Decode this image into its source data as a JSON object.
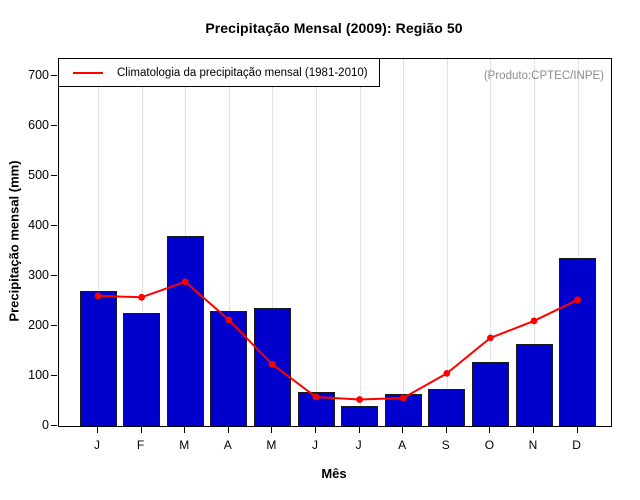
{
  "chart_data": {
    "type": "bar",
    "title": "Precipitação Mensal (2009): Região 50",
    "xlabel": "Mês",
    "ylabel": "Precipitação mensal (mm)",
    "watermark": "(Produto:CPTEC/INPE)",
    "categories": [
      "J",
      "F",
      "M",
      "A",
      "M",
      "J",
      "J",
      "A",
      "S",
      "O",
      "N",
      "D"
    ],
    "series": [
      {
        "name": "Precipitação mensal (2009)",
        "type": "bar",
        "color": "#0000cc",
        "values": [
          270,
          225,
          380,
          230,
          235,
          68,
          40,
          63,
          73,
          127,
          164,
          335
        ]
      },
      {
        "name": "Climatologia da precipitação mensal (1981-2010)",
        "type": "line",
        "color": "#ff0000",
        "values": [
          260,
          257,
          288,
          212,
          123,
          58,
          53,
          56,
          105,
          176,
          210,
          252
        ]
      }
    ],
    "legend": {
      "label": "Climatologia da precipitação mensal (1981-2010)",
      "position": "top-left",
      "line_color": "#ff0000"
    },
    "yticks": [
      0,
      100,
      200,
      300,
      400,
      500,
      600,
      700
    ],
    "ylim": [
      0,
      733
    ],
    "grid": "vertical-dotted",
    "colors": {
      "bar_fill": "#0000cc",
      "bar_border": "#1a1a1a",
      "line": "#ff0000",
      "grid": "#c9c9c9",
      "watermark_text": "#8c8c8c"
    }
  }
}
